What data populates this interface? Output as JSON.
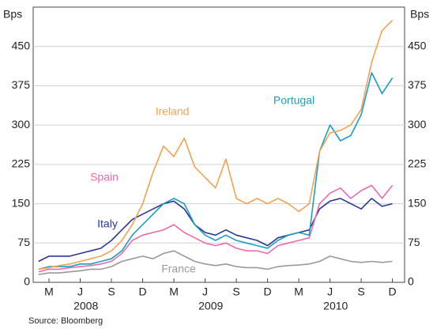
{
  "chart_data": {
    "type": "line",
    "y_label": "Bps",
    "x": [
      "2008-02",
      "2008-03",
      "2008-04",
      "2008-05",
      "2008-06",
      "2008-07",
      "2008-08",
      "2008-09",
      "2008-10",
      "2008-11",
      "2008-12",
      "2009-01",
      "2009-02",
      "2009-03",
      "2009-04",
      "2009-05",
      "2009-06",
      "2009-07",
      "2009-08",
      "2009-09",
      "2009-10",
      "2009-11",
      "2009-12",
      "2010-01",
      "2010-02",
      "2010-03",
      "2010-04",
      "2010-05",
      "2010-06",
      "2010-07",
      "2010-08",
      "2010-09",
      "2010-10",
      "2010-11",
      "2010-12"
    ],
    "series": [
      {
        "name": "Ireland",
        "color": "#f2a257",
        "values": [
          25,
          28,
          32,
          35,
          40,
          45,
          50,
          60,
          80,
          110,
          150,
          210,
          260,
          240,
          275,
          220,
          200,
          180,
          235,
          160,
          150,
          160,
          150,
          160,
          150,
          135,
          150,
          250,
          285,
          290,
          300,
          330,
          420,
          480,
          500
        ]
      },
      {
        "name": "Portugal",
        "color": "#1a9fbf",
        "values": [
          25,
          30,
          30,
          30,
          35,
          35,
          40,
          45,
          60,
          90,
          110,
          130,
          150,
          160,
          150,
          110,
          90,
          80,
          90,
          80,
          75,
          70,
          65,
          80,
          90,
          95,
          90,
          250,
          300,
          270,
          280,
          320,
          400,
          360,
          390
        ]
      },
      {
        "name": "Spain",
        "color": "#ec6aae",
        "values": [
          20,
          25,
          25,
          28,
          30,
          32,
          35,
          40,
          55,
          80,
          90,
          95,
          100,
          110,
          95,
          85,
          75,
          70,
          75,
          65,
          60,
          60,
          55,
          70,
          75,
          80,
          85,
          150,
          170,
          180,
          160,
          175,
          185,
          160,
          185
        ]
      },
      {
        "name": "Italy",
        "color": "#2b3990",
        "values": [
          40,
          50,
          50,
          50,
          55,
          60,
          65,
          80,
          100,
          120,
          130,
          140,
          150,
          155,
          140,
          110,
          95,
          90,
          100,
          90,
          85,
          80,
          70,
          85,
          90,
          95,
          100,
          140,
          155,
          160,
          150,
          140,
          160,
          145,
          150
        ]
      },
      {
        "name": "France",
        "color": "#9a9a9a",
        "values": [
          15,
          18,
          18,
          20,
          22,
          25,
          25,
          30,
          40,
          45,
          50,
          45,
          55,
          60,
          50,
          40,
          35,
          32,
          35,
          30,
          28,
          28,
          25,
          30,
          32,
          33,
          35,
          40,
          50,
          45,
          40,
          38,
          40,
          38,
          40
        ]
      }
    ],
    "xticks": [
      {
        "value": "2008-03",
        "label": "M"
      },
      {
        "value": "2008-06",
        "label": "J"
      },
      {
        "value": "2008-09",
        "label": "S"
      },
      {
        "value": "2008-12",
        "label": "D"
      },
      {
        "value": "2009-03",
        "label": "M"
      },
      {
        "value": "2009-06",
        "label": "J"
      },
      {
        "value": "2009-09",
        "label": "S"
      },
      {
        "value": "2009-12",
        "label": "D"
      },
      {
        "value": "2010-03",
        "label": "M"
      },
      {
        "value": "2010-06",
        "label": "J"
      },
      {
        "value": "2010-09",
        "label": "S"
      },
      {
        "value": "2010-12",
        "label": "D"
      }
    ],
    "years": [
      "2008",
      "2009",
      "2010"
    ],
    "ylim": [
      0,
      525
    ],
    "yticks": [
      0,
      75,
      150,
      225,
      300,
      375,
      450
    ],
    "grid": true,
    "source": "Source: Bloomberg"
  }
}
